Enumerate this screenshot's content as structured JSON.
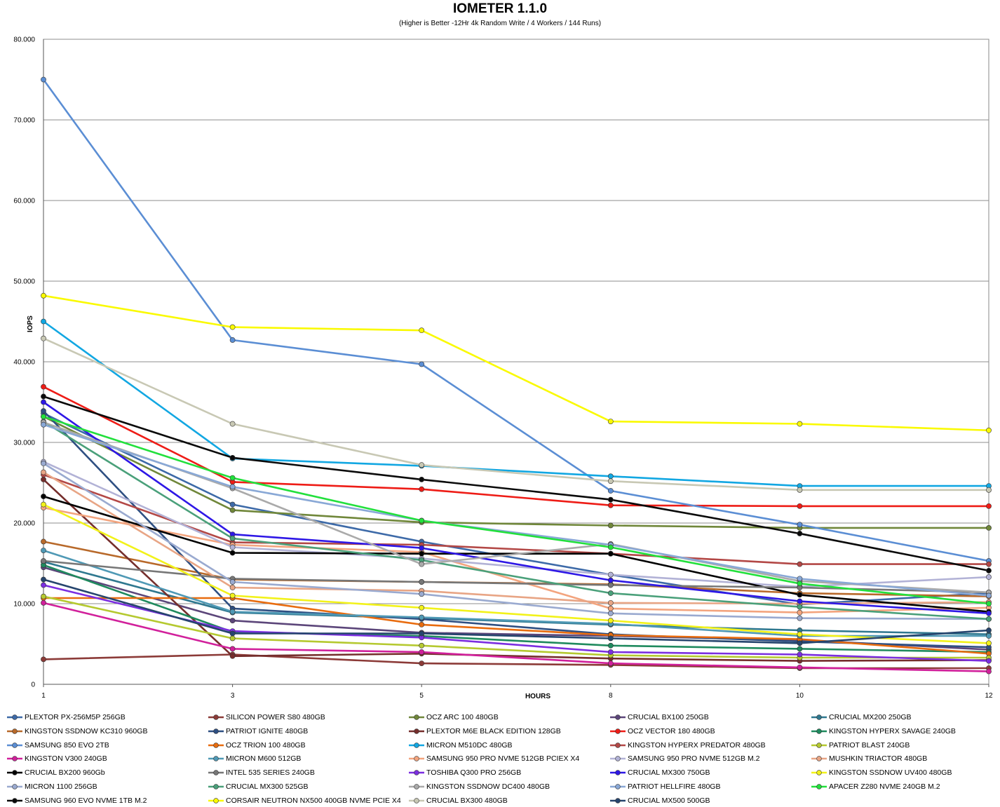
{
  "chart_data": {
    "type": "line",
    "title": "IOMETER 1.1.0",
    "subtitle": "(Higher is Better -12Hr 4k Random Write / 4 Workers / 144 Runs)",
    "xlabel": "HOURS",
    "ylabel": "IOPS",
    "x": [
      "1",
      "3",
      "5",
      "8",
      "10",
      "12"
    ],
    "ylim": [
      0,
      80000
    ],
    "yticks": [
      "0",
      "10.000",
      "20.000",
      "30.000",
      "40.000",
      "50.000",
      "60.000",
      "70.000",
      "80.000"
    ],
    "grid": true,
    "legend_position": "bottom",
    "series": [
      {
        "name": "PLEXTOR PX-256M5P 256GB",
        "color": "#3d6aa8",
        "values": [
          33600,
          22300,
          17700,
          13600,
          9900,
          11300
        ]
      },
      {
        "name": "SILICON POWER S80 480GB",
        "color": "#8c3b38",
        "values": [
          3100,
          3700,
          2600,
          2400,
          2000,
          2000
        ]
      },
      {
        "name": "OCZ ARC 100 480GB",
        "color": "#70873a",
        "values": [
          33200,
          21600,
          20100,
          19700,
          19400,
          19400
        ]
      },
      {
        "name": "CRUCIAL BX100 250GB",
        "color": "#5c467a",
        "values": [
          14500,
          7900,
          6400,
          6000,
          5500,
          4300
        ]
      },
      {
        "name": "CRUCIAL MX200 250GB",
        "color": "#2f788f",
        "values": [
          15200,
          8900,
          8200,
          7400,
          6700,
          6200
        ]
      },
      {
        "name": "KINGSTON SSDNOW KC310 960GB",
        "color": "#b8692a",
        "values": [
          17700,
          13000,
          12700,
          12400,
          11300,
          10900
        ]
      },
      {
        "name": "PATRIOT IGNITE 480GB",
        "color": "#2e4f82",
        "values": [
          33900,
          9400,
          8100,
          6200,
          5300,
          4600
        ]
      },
      {
        "name": "PLEXTOR M6E BLACK EDITION 128GB",
        "color": "#752e2c",
        "values": [
          25400,
          3500,
          3800,
          3200,
          2900,
          3000
        ]
      },
      {
        "name": "OCZ VECTOR 180 480GB",
        "color": "#ee1c16",
        "values": [
          36900,
          25100,
          24200,
          22200,
          22100,
          22100
        ]
      },
      {
        "name": "KINGSTON HYPERX SAVAGE 240GB",
        "color": "#1f8a5e",
        "values": [
          14800,
          6500,
          6000,
          4800,
          4400,
          4000
        ]
      },
      {
        "name": "SAMSUNG 850 EVO 2TB",
        "color": "#5b8ed4",
        "values": [
          75000,
          42700,
          39700,
          24000,
          19800,
          15300
        ]
      },
      {
        "name": "OCZ TRION 100 480GB",
        "color": "#e86c0f",
        "values": [
          10700,
          10700,
          7400,
          6100,
          5600,
          3800
        ]
      },
      {
        "name": "MICRON M510DC 480GB",
        "color": "#12a7e2",
        "values": [
          45000,
          28000,
          27100,
          25800,
          24600,
          24600
        ]
      },
      {
        "name": "KINGSTON HYPERX PREDATOR 480GB",
        "color": "#b34846",
        "values": [
          26000,
          17600,
          17300,
          16200,
          14900,
          14900
        ]
      },
      {
        "name": "PATRIOT BLAST 240GB",
        "color": "#b5c930",
        "values": [
          10900,
          5700,
          4800,
          3600,
          3300,
          3300
        ]
      },
      {
        "name": "KINGSTON V300 240GB",
        "color": "#d1209b",
        "values": [
          10100,
          4400,
          4000,
          2600,
          2100,
          1600
        ]
      },
      {
        "name": "MICRON M600 512GB",
        "color": "#4f99b5",
        "values": [
          16600,
          9000,
          8300,
          7500,
          6000,
          6000
        ]
      },
      {
        "name": "SAMSUNG 950 PRO NVME 512GB PCIEX X4",
        "color": "#f3a47e",
        "values": [
          21900,
          17300,
          16400,
          9400,
          8900,
          9500
        ]
      },
      {
        "name": "SAMSUNG 950 PRO NVME 512GB M.2",
        "color": "#b2b2d6",
        "values": [
          27600,
          17000,
          15600,
          13600,
          12100,
          13300
        ]
      },
      {
        "name": "MUSHKIN TRIACTOR 480GB",
        "color": "#e8a585",
        "values": [
          26300,
          12000,
          11600,
          10100,
          10000,
          10200
        ]
      },
      {
        "name": "CRUCIAL BX200 960Gb",
        "color": "#000000",
        "values": [
          23300,
          16300,
          16200,
          16200,
          11100,
          9000
        ]
      },
      {
        "name": "INTEL 535 SERIES 240GB",
        "color": "#777777",
        "values": [
          15300,
          13100,
          12700,
          12300,
          12000,
          11400
        ]
      },
      {
        "name": "TOSHIBA Q300 PRO 256GB",
        "color": "#7b2ee0",
        "values": [
          12300,
          6600,
          5800,
          4000,
          3700,
          2900
        ]
      },
      {
        "name": "CRUCIAL MX300 750GB",
        "color": "#2e17e6",
        "values": [
          35000,
          18600,
          16900,
          12900,
          10300,
          8800
        ]
      },
      {
        "name": "KINGSTON SSDNOW UV400 480GB",
        "color": "#f2f21a",
        "values": [
          22300,
          11000,
          9500,
          7900,
          6200,
          5100
        ]
      },
      {
        "name": "MICRON 1100 256GB",
        "color": "#9aaad0",
        "values": [
          27400,
          12700,
          11200,
          8800,
          8200,
          8100
        ]
      },
      {
        "name": "CRUCIAL MX300 525GB",
        "color": "#4aa07a",
        "values": [
          32600,
          18100,
          15400,
          11300,
          9600,
          8100
        ]
      },
      {
        "name": "KINGSTON SSDNOW DC400 480GB",
        "color": "#aaaaaa",
        "values": [
          32500,
          24300,
          14900,
          17400,
          12800,
          11400
        ]
      },
      {
        "name": "PATRIOT HELLFIRE 480GB",
        "color": "#89a8d6",
        "values": [
          32200,
          24500,
          20300,
          17300,
          13100,
          11000
        ]
      },
      {
        "name": "APACER Z280 NVME 240GB M.2",
        "color": "#22e03c",
        "values": [
          33200,
          25600,
          20300,
          17000,
          12500,
          10000
        ]
      },
      {
        "name": "SAMSUNG 960 EVO NVME 1TB M.2",
        "color": "#0a0a0a",
        "values": [
          35700,
          28100,
          25400,
          22900,
          18700,
          14100
        ]
      },
      {
        "name": "CORSAIR NEUTRON NX500 400GB NVME PCIE X4",
        "color": "#fafa00",
        "values": [
          48200,
          44300,
          43900,
          32600,
          32300,
          31500
        ]
      },
      {
        "name": "CRUCIAL BX300 480GB",
        "color": "#c8c8b4",
        "values": [
          42900,
          32300,
          27200,
          25200,
          24100,
          24100
        ]
      },
      {
        "name": "CRUCIAL MX500 500GB",
        "color": "#26456e",
        "values": [
          13000,
          6300,
          6300,
          5700,
          5100,
          6700
        ]
      }
    ]
  }
}
